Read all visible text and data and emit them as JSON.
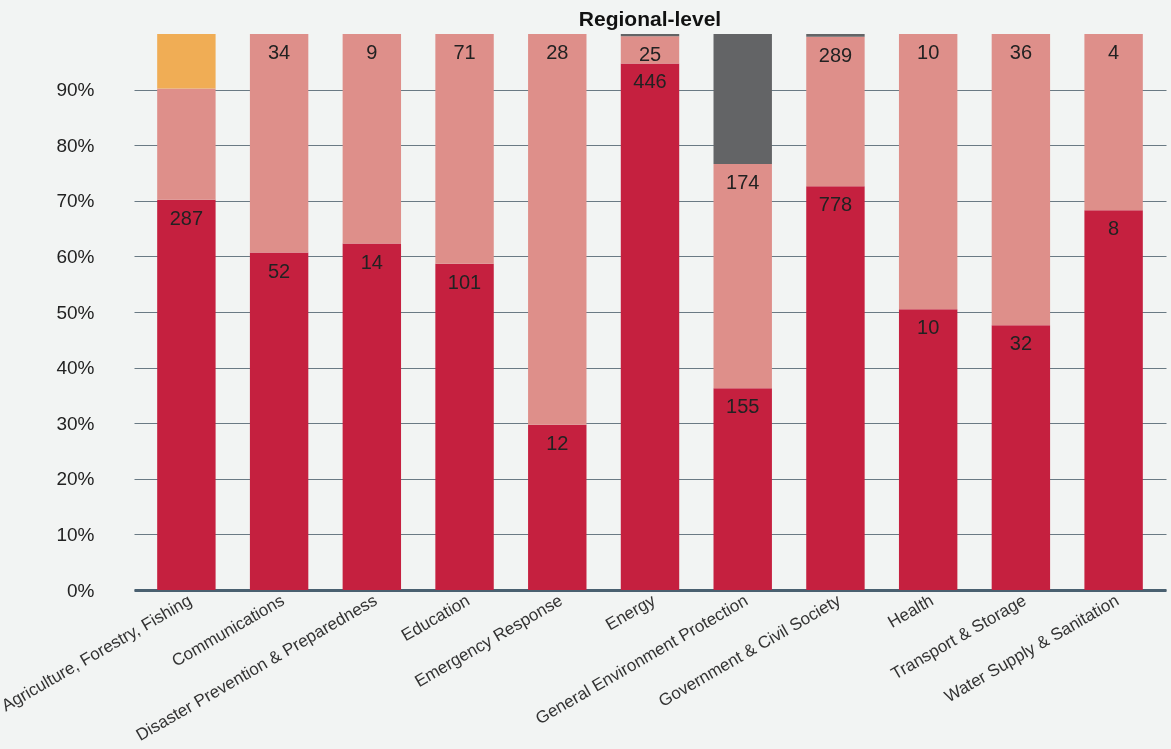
{
  "chart_data": {
    "type": "bar",
    "title": "Regional-level",
    "stacked": true,
    "categories": [
      "Agriculture, Forestry, Fishing",
      "Communications",
      "Disaster Prevention & Preparedness",
      "Education",
      "Emergency Response",
      "Energy",
      "General Environment Protection",
      "Government & Civil Society",
      "Health",
      "Transport & Storage",
      "Water Supply & Sanitation"
    ],
    "series": [
      {
        "color": "#c5203f",
        "values": [
          70.2,
          60.7,
          62.3,
          58.7,
          29.7,
          94.7,
          36.3,
          72.6,
          50.5,
          47.6,
          68.3
        ]
      },
      {
        "color": "#de8f8a",
        "values": [
          20.0,
          39.3,
          37.7,
          41.3,
          70.3,
          4.9,
          40.3,
          26.9,
          49.5,
          52.4,
          31.7
        ]
      },
      {
        "color": "#636466",
        "values": [
          0,
          0,
          0,
          0,
          0,
          0.4,
          23.4,
          0.5,
          0,
          0,
          0
        ]
      },
      {
        "color": "#f0ad55",
        "values": [
          9.8,
          0,
          0,
          0,
          0,
          0,
          0,
          0,
          0,
          0,
          0
        ]
      }
    ],
    "annotations": [
      {
        "text": "287",
        "x": "Agriculture, Forestry, Fishing",
        "y": 70.2
      },
      {
        "text": "52",
        "x": "Communications",
        "y": 60.7
      },
      {
        "text": "34",
        "x": "Communications",
        "y": 100
      },
      {
        "text": "14",
        "x": "Disaster Prevention & Preparedness",
        "y": 62.3
      },
      {
        "text": "9",
        "x": "Disaster Prevention & Preparedness",
        "y": 100
      },
      {
        "text": "101",
        "x": "Education",
        "y": 58.7
      },
      {
        "text": "71",
        "x": "Education",
        "y": 100
      },
      {
        "text": "12",
        "x": "Emergency Response",
        "y": 29.7
      },
      {
        "text": "28",
        "x": "Emergency Response",
        "y": 100
      },
      {
        "text": "446",
        "x": "Energy",
        "y": 94.7
      },
      {
        "text": "25",
        "x": "Energy",
        "y": 99.6
      },
      {
        "text": "155",
        "x": "General Environment Protection",
        "y": 36.3
      },
      {
        "text": "174",
        "x": "General Environment Protection",
        "y": 76.6
      },
      {
        "text": "778",
        "x": "Government & Civil Society",
        "y": 72.6
      },
      {
        "text": "289",
        "x": "Government & Civil Society",
        "y": 99.5
      },
      {
        "text": "10",
        "x": "Health",
        "y": 50.5
      },
      {
        "text": "10",
        "x": "Health",
        "y": 100
      },
      {
        "text": "32",
        "x": "Transport & Storage",
        "y": 47.6
      },
      {
        "text": "36",
        "x": "Transport & Storage",
        "y": 100
      },
      {
        "text": "8",
        "x": "Water Supply & Sanitation",
        "y": 68.3
      },
      {
        "text": "4",
        "x": "Water Supply & Sanitation",
        "y": 100
      }
    ],
    "ylim": [
      0,
      100
    ],
    "yticks": [
      {
        "value": 0,
        "label": "0%"
      },
      {
        "value": 10,
        "label": "10%"
      },
      {
        "value": 20,
        "label": "20%"
      },
      {
        "value": 30,
        "label": "30%"
      },
      {
        "value": 40,
        "label": "40%"
      },
      {
        "value": 50,
        "label": "50%"
      },
      {
        "value": 60,
        "label": "60%"
      },
      {
        "value": 70,
        "label": "70%"
      },
      {
        "value": 80,
        "label": "80%"
      },
      {
        "value": 90,
        "label": "90%"
      }
    ],
    "grid": "y",
    "legend": false
  }
}
